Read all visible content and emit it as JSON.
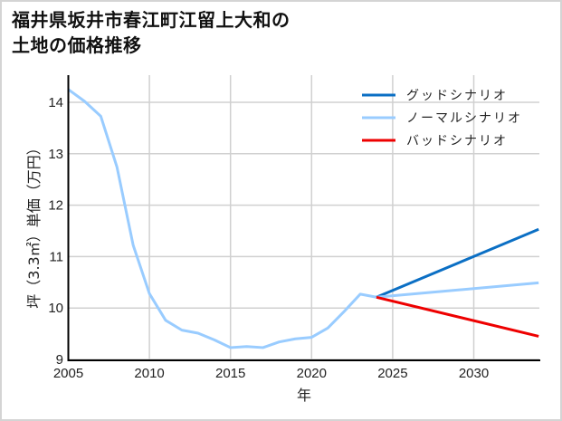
{
  "chart_data": {
    "type": "line",
    "title": "福井県坂井市春江町江留上大和の\n土地の価格推移",
    "title_lines": [
      "福井県坂井市春江町江留上大和の",
      "土地の価格推移"
    ],
    "xlabel": "年",
    "ylabel": "坪（3.3㎡）単価（万円）",
    "xlim": [
      2005,
      2034
    ],
    "ylim": [
      9,
      14.45
    ],
    "x_ticks": [
      2005,
      2010,
      2015,
      2020,
      2025,
      2030
    ],
    "y_ticks": [
      9,
      10,
      11,
      12,
      13,
      14
    ],
    "grid": true,
    "legend_position": "upper right",
    "historical": {
      "x": [
        2005,
        2006,
        2007,
        2008,
        2009,
        2010,
        2011,
        2012,
        2013,
        2014,
        2015,
        2016,
        2017,
        2018,
        2019,
        2020,
        2021,
        2022,
        2023,
        2024
      ],
      "values": [
        14.25,
        14.02,
        13.73,
        12.74,
        11.22,
        10.28,
        9.76,
        9.57,
        9.51,
        9.38,
        9.23,
        9.25,
        9.23,
        9.34,
        9.4,
        9.43,
        9.61,
        9.93,
        10.27,
        10.21
      ],
      "color": "#99ccff"
    },
    "series": [
      {
        "name": "グッドシナリオ",
        "x": [
          2024,
          2034
        ],
        "values": [
          10.21,
          11.53
        ],
        "color": "#0b6fc4"
      },
      {
        "name": "ノーマルシナリオ",
        "x": [
          2024,
          2034
        ],
        "values": [
          10.21,
          10.49
        ],
        "color": "#99ccff"
      },
      {
        "name": "バッドシナリオ",
        "x": [
          2024,
          2034
        ],
        "values": [
          10.21,
          9.45
        ],
        "color": "#ee0000"
      }
    ]
  },
  "title": {
    "line1": "福井県坂井市春江町江留上大和の",
    "line2": "土地の価格推移"
  },
  "axes": {
    "xlabel": "年",
    "ylabel": "坪（3.3㎡）単価（万円）",
    "x_tick_labels": [
      "2005",
      "2010",
      "2015",
      "2020",
      "2025",
      "2030"
    ],
    "y_tick_labels": [
      "9",
      "10",
      "11",
      "12",
      "13",
      "14"
    ]
  },
  "legend": {
    "items": [
      {
        "label": "グッドシナリオ",
        "color": "#0b6fc4"
      },
      {
        "label": "ノーマルシナリオ",
        "color": "#99ccff"
      },
      {
        "label": "バッドシナリオ",
        "color": "#ee0000"
      }
    ]
  }
}
